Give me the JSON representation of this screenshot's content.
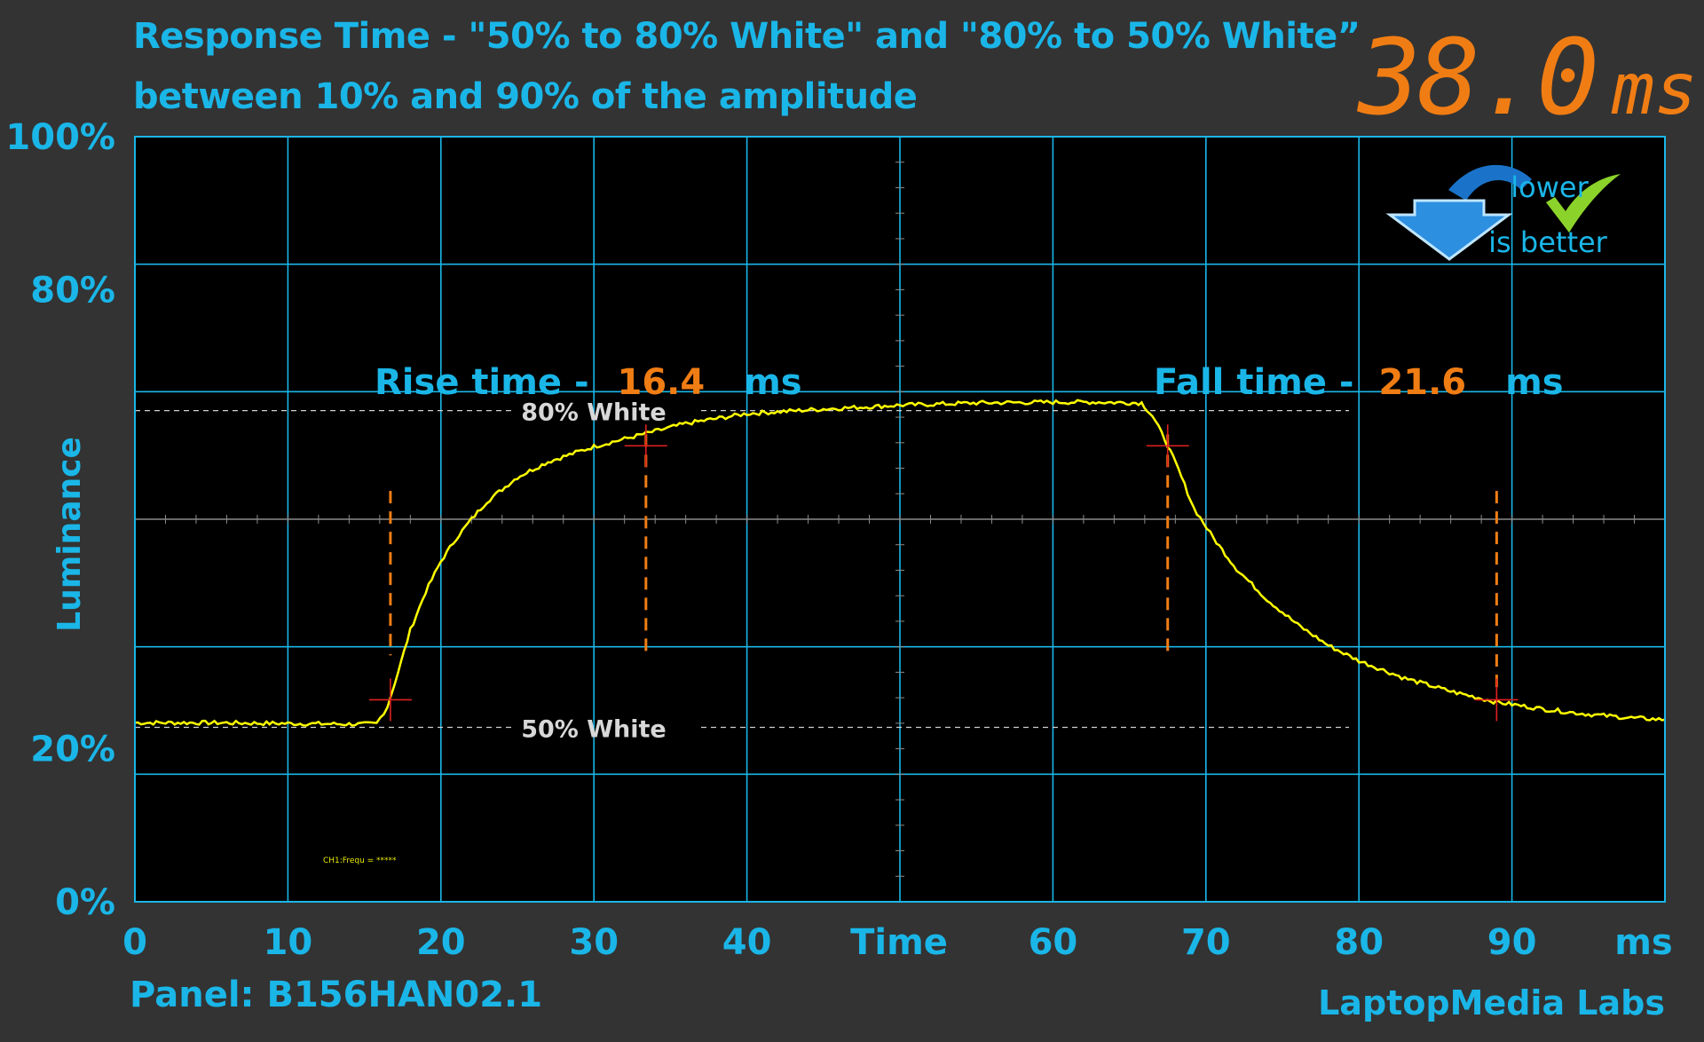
{
  "header": {
    "title_line1": "Response Time - \"50% to 80% White\" and \"80% to 50% White”",
    "title_line2": "between 10% and 90% of the amplitude",
    "readout_value": "38.0",
    "readout_unit": "ms"
  },
  "badge": {
    "line1": "lower",
    "line2": "is better"
  },
  "footer": {
    "panel": "Panel: B156HAN02.1",
    "brand": "LaptopMedia Labs"
  },
  "chart_data": {
    "type": "line",
    "ylabel": "Luminance",
    "xlabel": "Time",
    "x_unit": "ms",
    "xlim": [
      0,
      100
    ],
    "ylim": [
      0,
      100
    ],
    "x_ticks": [
      0,
      10,
      20,
      30,
      40,
      60,
      70,
      80,
      90
    ],
    "y_tick_labels": [
      {
        "value": 100,
        "label": "100%"
      },
      {
        "value": 80,
        "label": "80%"
      },
      {
        "value": 20,
        "label": "20%"
      },
      {
        "value": 0,
        "label": "0%"
      }
    ],
    "grid": true,
    "reference_lines": [
      {
        "label": "80% White",
        "y": 64.2
      },
      {
        "label": "50% White",
        "y": 22.8
      }
    ],
    "series": [
      {
        "color": "#ffff00",
        "x": [
          0,
          5,
          10,
          15,
          15.8,
          16.5,
          17.2,
          18,
          19,
          20,
          21,
          22,
          23,
          25,
          27,
          30,
          33.4,
          36,
          40,
          45,
          50,
          55,
          60,
          63,
          65.8,
          66.5,
          67.3,
          68.2,
          69.2,
          70.5,
          72,
          74,
          76,
          78,
          80,
          83,
          86,
          89,
          92,
          95,
          98,
          100
        ],
        "y": [
          23.4,
          23.4,
          23.3,
          23.2,
          23.3,
          25.5,
          30,
          35.5,
          40.5,
          44.5,
          47.5,
          50,
          52.3,
          55.5,
          57.5,
          59.5,
          61.2,
          62.5,
          63.8,
          64.4,
          64.9,
          65.2,
          65.3,
          65.3,
          65.2,
          63.5,
          60.5,
          56.5,
          51.5,
          47.5,
          43.5,
          39.5,
          36.2,
          33.5,
          31.5,
          29.2,
          27.5,
          26.1,
          25.2,
          24.5,
          24,
          23.8
        ]
      }
    ],
    "markers": [
      {
        "x": 16.7,
        "y": 26.4
      },
      {
        "x": 33.4,
        "y": 59.6
      },
      {
        "x": 67.5,
        "y": 59.6
      },
      {
        "x": 89.0,
        "y": 26.4
      }
    ],
    "cursors": [
      {
        "x": 16.7,
        "y_top": 53.7,
        "y_bottom": 32.2
      },
      {
        "x": 33.4,
        "y_top": 61.1,
        "y_bottom": 32.2
      },
      {
        "x": 67.5,
        "y_top": 61.1,
        "y_bottom": 32.2
      },
      {
        "x": 89.0,
        "y_top": 53.7,
        "y_bottom": 27.0
      }
    ],
    "annotations": [
      {
        "label": "Rise time -",
        "value": "16.4",
        "unit": "ms"
      },
      {
        "label": "Fall time -",
        "value": "21.6",
        "unit": "ms"
      }
    ],
    "small_text": "CH1:Frequ = *****"
  }
}
